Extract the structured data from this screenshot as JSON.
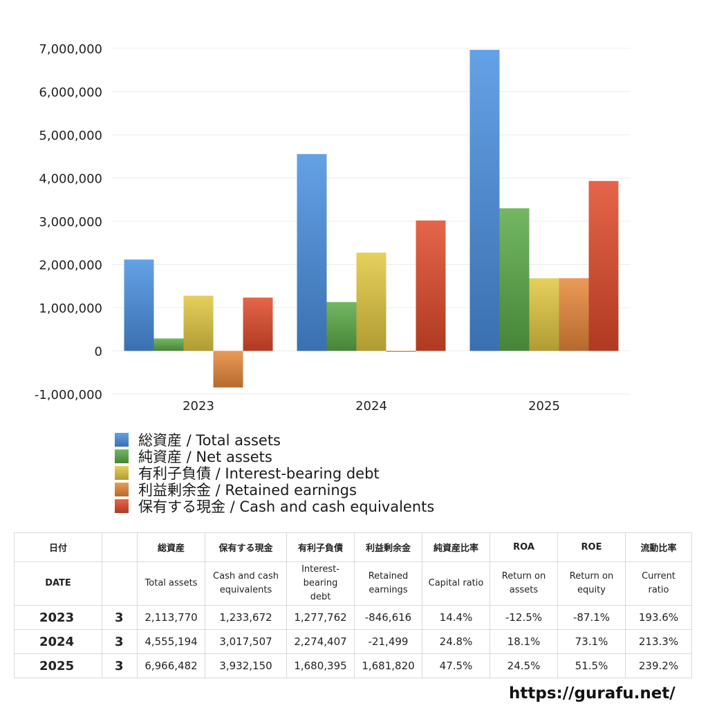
{
  "chart_data": {
    "type": "bar",
    "categories": [
      "2023",
      "2024",
      "2025"
    ],
    "series": [
      {
        "name": "総資産 / Total assets",
        "color": "#4a90e2",
        "values": [
          2113770,
          4555194,
          6966482
        ]
      },
      {
        "name": "純資産 / Net assets",
        "color": "#5aaa46",
        "values": [
          288000,
          1130000,
          3300000
        ]
      },
      {
        "name": "有利子負債 / Interest-bearing debt",
        "color": "#e2c840",
        "values": [
          1277762,
          2274407,
          1680395
        ]
      },
      {
        "name": "利益剰余金 / Retained earnings",
        "color": "#e8883a",
        "values": [
          -846616,
          -21499,
          1681820
        ]
      },
      {
        "name": "保有する現金 /  Cash and cash equivalents",
        "color": "#e04a2a",
        "values": [
          1233672,
          3017507,
          3932150
        ]
      }
    ],
    "yticks": [
      "7,000,000",
      "6,000,000",
      "5,000,000",
      "4,000,000",
      "3,000,000",
      "2,000,000",
      "1,000,000",
      "0",
      "-1,000,000"
    ],
    "ylim": [
      -1000000,
      7000000
    ],
    "grid": true,
    "legend_position": "bottom-left"
  },
  "table": {
    "header_jp": [
      "日付",
      "",
      "総資産",
      "保有する現金",
      "有利子負債",
      "利益剰余金",
      "純資産比率",
      "ROA",
      "ROE",
      "流動比率"
    ],
    "header_en": [
      [
        "DATE"
      ],
      [
        ""
      ],
      [
        "Total assets"
      ],
      [
        "Cash and cash",
        "equivalents"
      ],
      [
        "Interest-",
        "bearing",
        "debt"
      ],
      [
        "Retained",
        "earnings"
      ],
      [
        "Capital ratio"
      ],
      [
        "Return on",
        "assets"
      ],
      [
        "Return on",
        "equity"
      ],
      [
        "Current",
        "ratio"
      ]
    ],
    "rows": [
      {
        "year": "2023",
        "month": "3",
        "values": [
          "2,113,770",
          "1,233,672",
          "1,277,762",
          "-846,616",
          "14.4%",
          "-12.5%",
          "-87.1%",
          "193.6%"
        ]
      },
      {
        "year": "2024",
        "month": "3",
        "values": [
          "4,555,194",
          "3,017,507",
          "2,274,407",
          "-21,499",
          "24.8%",
          "18.1%",
          "73.1%",
          "213.3%"
        ]
      },
      {
        "year": "2025",
        "month": "3",
        "values": [
          "6,966,482",
          "3,932,150",
          "1,680,395",
          "1,681,820",
          "47.5%",
          "24.5%",
          "51.5%",
          "239.2%"
        ]
      }
    ]
  },
  "footer": {
    "url": "https://gurafu.net/"
  }
}
